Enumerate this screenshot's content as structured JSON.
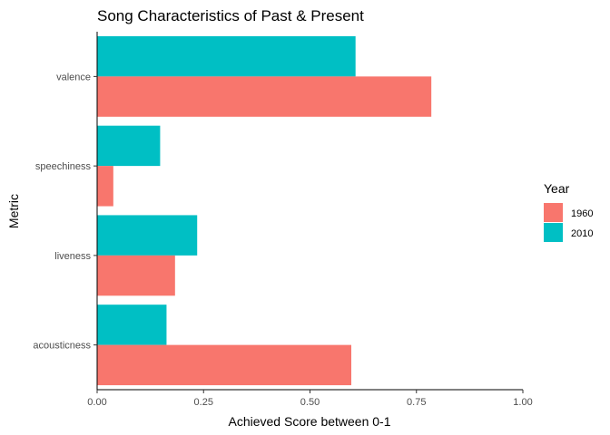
{
  "chart_data": {
    "type": "bar",
    "orientation": "horizontal",
    "title": "Song Characteristics of Past & Present",
    "xlabel": "Achieved Score between 0-1",
    "ylabel": "Metric",
    "categories": [
      "valence",
      "speechiness",
      "liveness",
      "acousticness"
    ],
    "series": [
      {
        "name": "1960",
        "color": "#F8766D",
        "values": [
          0.785,
          0.038,
          0.183,
          0.597
        ]
      },
      {
        "name": "2010",
        "color": "#00BFC4",
        "values": [
          0.607,
          0.148,
          0.235,
          0.163
        ]
      }
    ],
    "xlim": [
      0,
      1
    ],
    "xticks": [
      0,
      0.25,
      0.5,
      0.75,
      1
    ],
    "xtick_labels": [
      "0.00",
      "0.25",
      "0.50",
      "0.75",
      "1.00"
    ],
    "grid": false,
    "legend": {
      "title": "Year",
      "position": "right",
      "entries": [
        "1960",
        "2010"
      ]
    }
  }
}
